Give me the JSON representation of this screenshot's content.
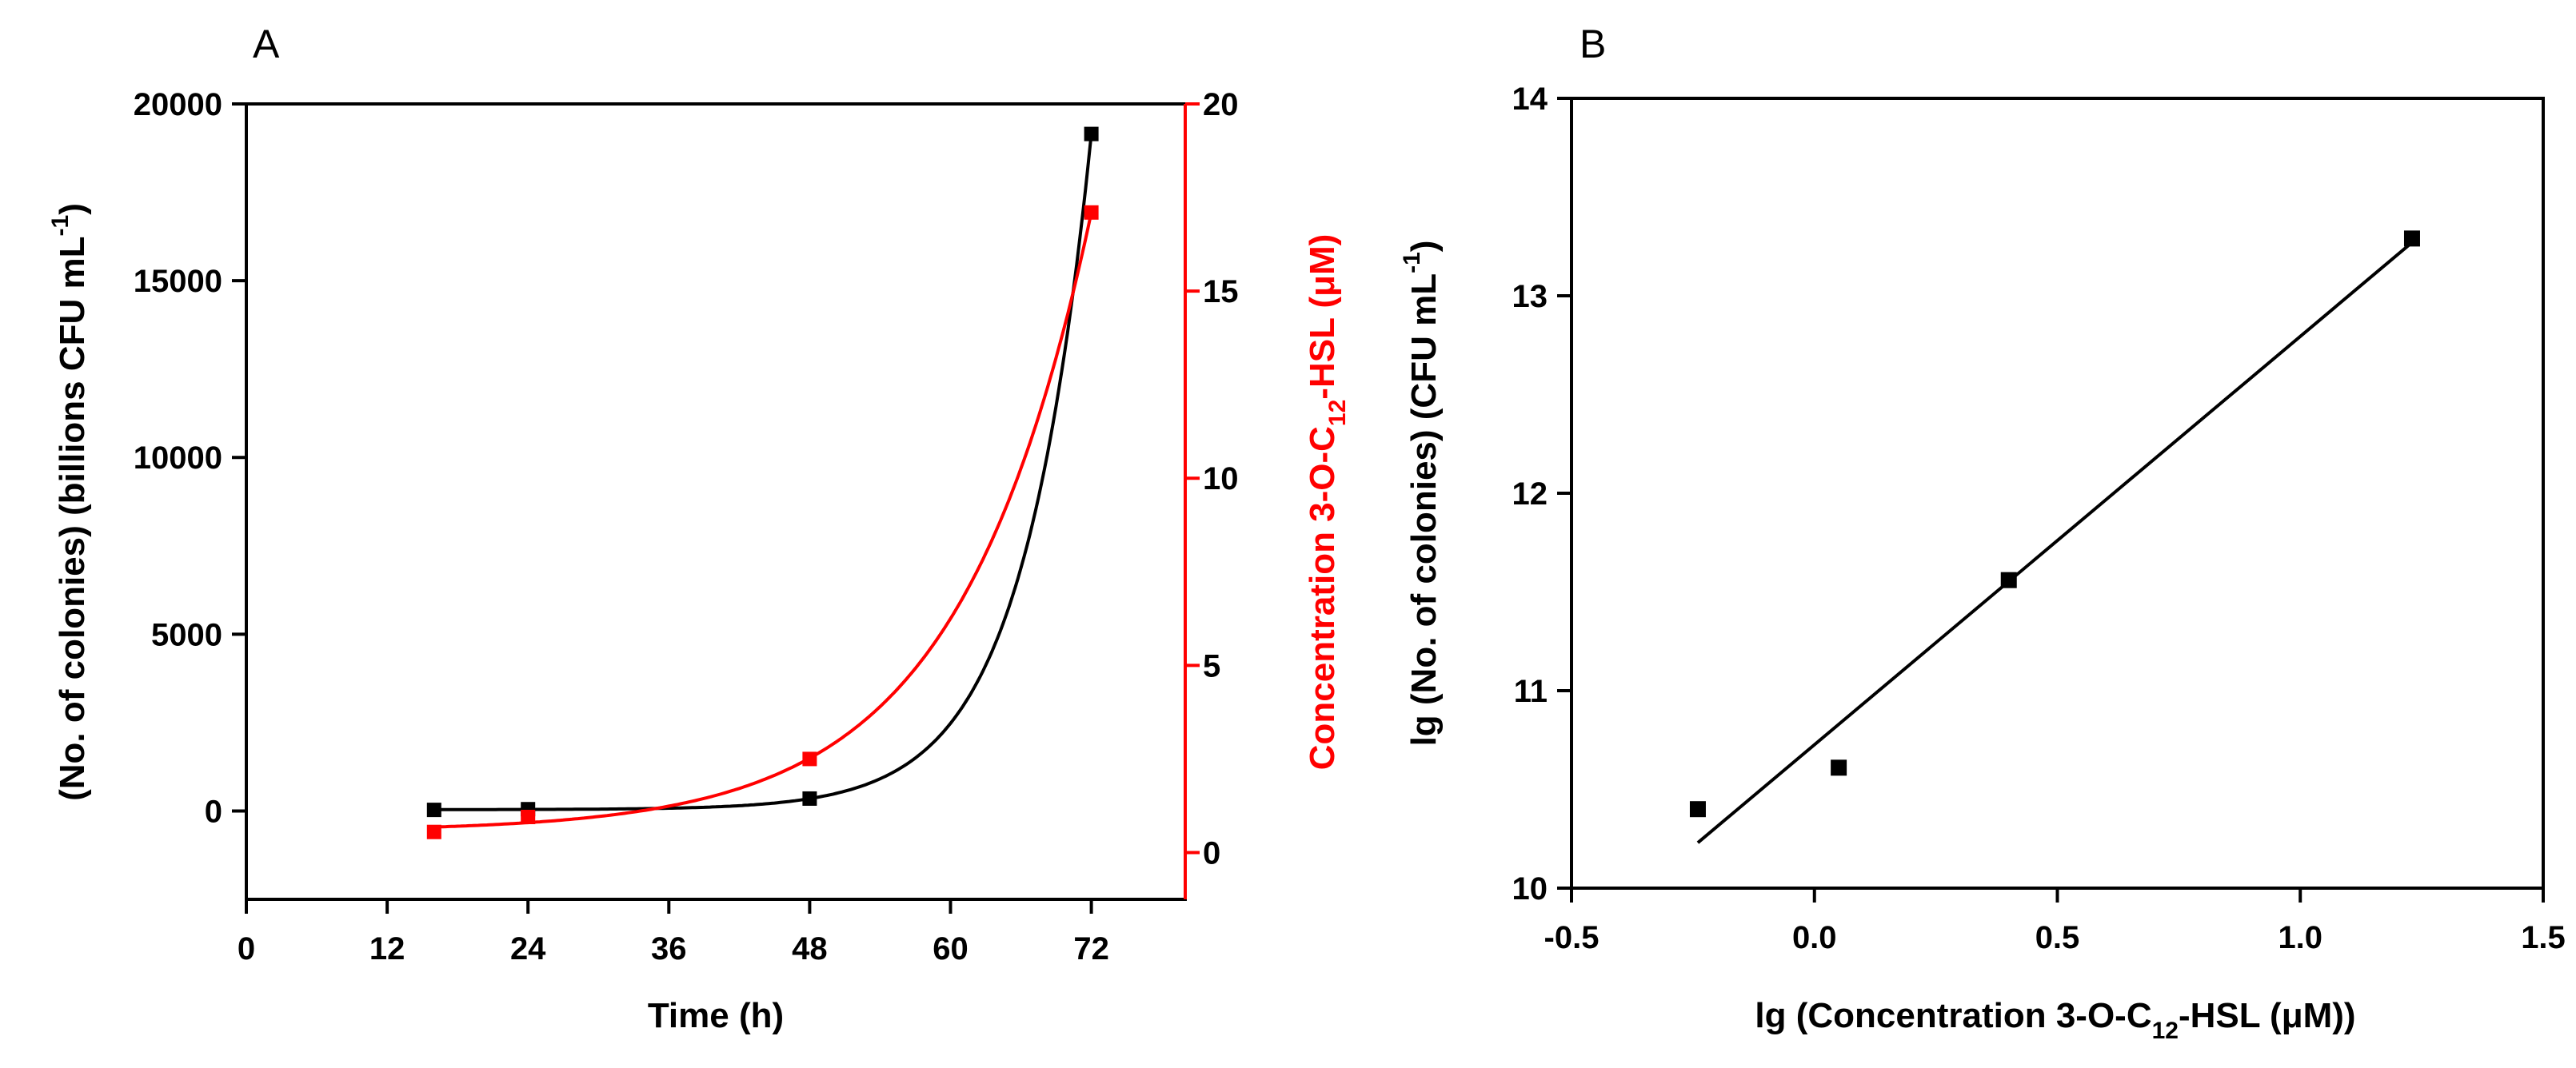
{
  "chart_data": [
    {
      "panel": "A",
      "type": "scatter",
      "x": [
        16,
        24,
        48,
        72
      ],
      "series": [
        {
          "name": "No. of colonies",
          "axis": "left",
          "color": "#000000",
          "values": [
            30,
            50,
            350,
            19150
          ],
          "fit": "exponential"
        },
        {
          "name": "Concentration 3-O-C12-HSL",
          "axis": "right",
          "color": "#ff0000",
          "values": [
            0.55,
            0.95,
            2.5,
            17.1
          ],
          "fit": "exponential"
        }
      ],
      "xlabel": "Time (h)",
      "ylabel": {
        "pre": "(No. of colonies) (billions CFU mL",
        "sup": "-1",
        "post": ")"
      },
      "y2label": {
        "pre": "Concentration 3-O-C",
        "sub": "12",
        "post": "-HSL (μM)"
      },
      "xlim": [
        0,
        80
      ],
      "ylim": [
        -2500,
        20000
      ],
      "y2lim": [
        -1.25,
        20
      ],
      "xticks": [
        "0",
        "12",
        "24",
        "36",
        "48",
        "60",
        "72"
      ],
      "yticks": [
        "0",
        "5000",
        "10000",
        "15000",
        "20000"
      ],
      "y2ticks": [
        "0",
        "5",
        "10",
        "15",
        "20"
      ],
      "colors": {
        "left": "#000000",
        "right": "#ff0000"
      }
    },
    {
      "panel": "B",
      "type": "scatter",
      "x": [
        -0.24,
        0.05,
        0.4,
        1.23
      ],
      "values": [
        10.4,
        10.61,
        11.56,
        13.29
      ],
      "fit": {
        "type": "linear",
        "x": [
          -0.24,
          1.23
        ],
        "y": [
          10.23,
          13.27
        ]
      },
      "xlabel": {
        "pre": "lg (Concentration 3-O-C",
        "sub": "12",
        "post": "-HSL (μM))"
      },
      "ylabel": {
        "pre": "lg (No. of colonies) (CFU mL",
        "sup": "-1",
        "post": ")"
      },
      "xlim": [
        -0.5,
        1.5
      ],
      "ylim": [
        10,
        14
      ],
      "xticks": [
        "-0.5",
        "0.0",
        "0.5",
        "1.0",
        "1.5"
      ],
      "yticks": [
        "10",
        "11",
        "12",
        "13",
        "14"
      ]
    }
  ]
}
